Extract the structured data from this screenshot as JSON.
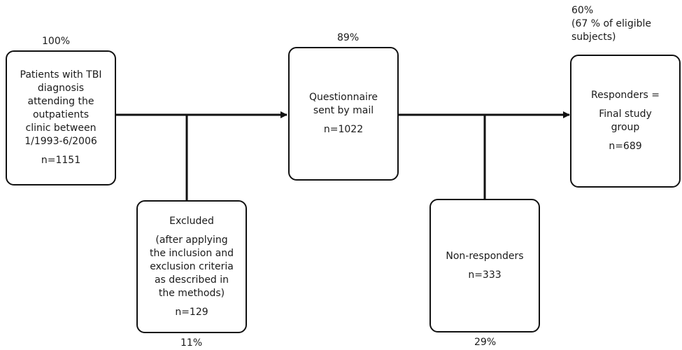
{
  "patients": {
    "percent": "100%",
    "lines": [
      "Patients with TBI",
      "diagnosis",
      "attending the",
      "outpatients",
      "clinic between",
      "1/1993-6/2006"
    ],
    "n": "n=1151"
  },
  "excluded": {
    "percent": "11%",
    "title": "Excluded",
    "lines": [
      "(after applying",
      "the inclusion and",
      "exclusion criteria",
      "as described in",
      "the methods)"
    ],
    "n": "n=129"
  },
  "questionnaire": {
    "percent": "89%",
    "lines": [
      "Questionnaire",
      "sent by mail"
    ],
    "n": "n=1022"
  },
  "nonresponders": {
    "percent": "29%",
    "title": "Non-responders",
    "n": "n=333"
  },
  "responders": {
    "percent_lines": [
      "60%",
      "(67 % of eligible",
      "subjects)"
    ],
    "lines": [
      "Responders =",
      "Final study",
      "group"
    ],
    "n": "n=689"
  }
}
